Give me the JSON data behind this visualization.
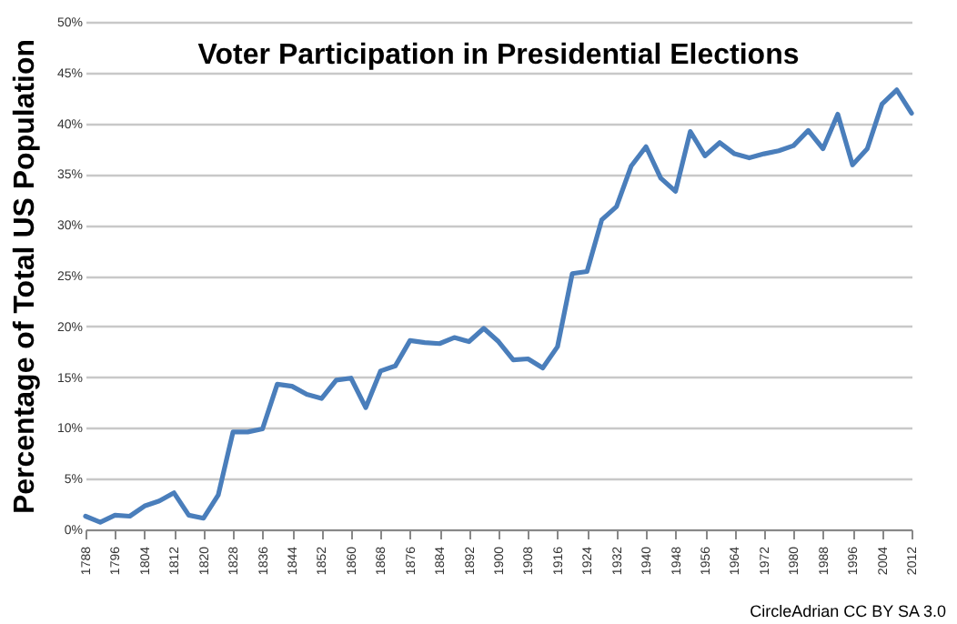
{
  "chart_data": {
    "type": "line",
    "title": "Voter Participation in Presidential Elections",
    "ylabel": "Percentage of Total US Population",
    "annotations": [
      "CircleAdrian CC BY SA 3.0"
    ],
    "x": [
      1788,
      1792,
      1796,
      1800,
      1804,
      1808,
      1812,
      1816,
      1820,
      1824,
      1828,
      1832,
      1836,
      1840,
      1844,
      1848,
      1852,
      1856,
      1860,
      1864,
      1868,
      1872,
      1876,
      1880,
      1884,
      1888,
      1892,
      1896,
      1900,
      1904,
      1908,
      1912,
      1916,
      1920,
      1924,
      1928,
      1932,
      1936,
      1940,
      1944,
      1948,
      1952,
      1956,
      1960,
      1964,
      1968,
      1972,
      1976,
      1980,
      1984,
      1988,
      1992,
      1996,
      2000,
      2004,
      2008,
      2012
    ],
    "series": [
      {
        "color": "#4a7ebb",
        "values": [
          1.3,
          0.7,
          1.4,
          1.3,
          2.3,
          2.8,
          3.6,
          1.4,
          1.1,
          3.4,
          9.6,
          9.6,
          9.9,
          14.3,
          14.1,
          13.3,
          12.9,
          14.7,
          14.9,
          12.0,
          15.6,
          16.1,
          18.6,
          18.4,
          18.3,
          18.9,
          18.5,
          19.8,
          18.5,
          16.7,
          16.8,
          15.9,
          18.0,
          25.2,
          25.4,
          30.5,
          31.8,
          35.8,
          37.7,
          34.6,
          33.3,
          39.2,
          36.8,
          38.1,
          37.0,
          36.6,
          37.0,
          37.3,
          37.8,
          39.3,
          37.5,
          40.9,
          35.9,
          37.5,
          41.9,
          43.3,
          41.0
        ]
      }
    ],
    "xlim": [
      1788,
      2012
    ],
    "xticks": [
      1788,
      1796,
      1804,
      1812,
      1820,
      1828,
      1836,
      1844,
      1852,
      1860,
      1868,
      1876,
      1884,
      1892,
      1900,
      1908,
      1916,
      1924,
      1932,
      1940,
      1948,
      1956,
      1964,
      1972,
      1980,
      1988,
      1996,
      2004,
      2012
    ],
    "ylim": [
      0,
      50
    ],
    "yticks": [
      {
        "value": 0,
        "label": "0%"
      },
      {
        "value": 5,
        "label": "5%"
      },
      {
        "value": 10,
        "label": "10%"
      },
      {
        "value": 15,
        "label": "15%"
      },
      {
        "value": 20,
        "label": "20%"
      },
      {
        "value": 25,
        "label": "25%"
      },
      {
        "value": 30,
        "label": "30%"
      },
      {
        "value": 35,
        "label": "35%"
      },
      {
        "value": 40,
        "label": "40%"
      },
      {
        "value": 45,
        "label": "45%"
      },
      {
        "value": 50,
        "label": "50%"
      }
    ],
    "grid": "y",
    "marker": "none",
    "line_style": "solid"
  }
}
